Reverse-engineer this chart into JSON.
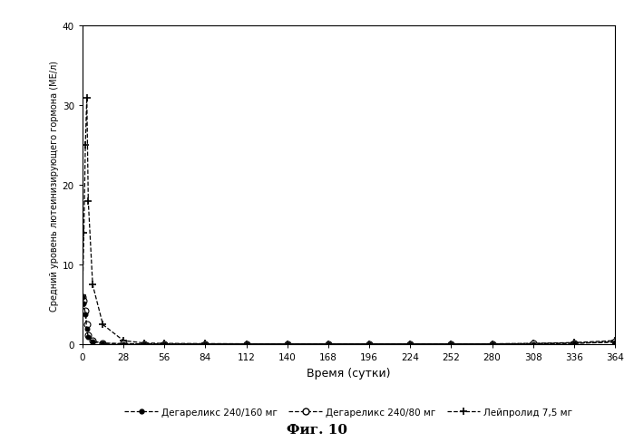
{
  "title": "",
  "xlabel": "Время (сутки)",
  "ylabel": "Средний уровень лютеинизирующего гормона (МЕ/л)",
  "caption": "Фиг. 10",
  "ylim": [
    0,
    40
  ],
  "xlim": [
    0,
    364
  ],
  "xticks": [
    0,
    28,
    56,
    84,
    112,
    140,
    168,
    196,
    224,
    252,
    280,
    308,
    336,
    364
  ],
  "yticks": [
    0,
    10,
    20,
    30,
    40
  ],
  "series1_label": "Дегареликс 240/160 мг",
  "series2_label": "Дегареликс 240/80 мг",
  "series3_label": "Лейпролид 7,5 мг",
  "series1_x": [
    0,
    1,
    2,
    3,
    4,
    7,
    14,
    28,
    42,
    56,
    84,
    112,
    140,
    168,
    196,
    224,
    252,
    280,
    308,
    336,
    364
  ],
  "series1_y": [
    6.0,
    5.2,
    3.8,
    2.0,
    0.9,
    0.35,
    0.15,
    0.1,
    0.08,
    0.08,
    0.07,
    0.07,
    0.07,
    0.07,
    0.07,
    0.07,
    0.07,
    0.07,
    0.1,
    0.15,
    0.3
  ],
  "series2_x": [
    0,
    1,
    2,
    3,
    4,
    7,
    14,
    28,
    42,
    56,
    84,
    112,
    140,
    168,
    196,
    224,
    252,
    280,
    308,
    336,
    364
  ],
  "series2_y": [
    6.0,
    5.5,
    4.2,
    2.5,
    1.2,
    0.45,
    0.18,
    0.12,
    0.09,
    0.09,
    0.08,
    0.08,
    0.08,
    0.08,
    0.08,
    0.08,
    0.08,
    0.08,
    0.12,
    0.18,
    0.35
  ],
  "series3_x": [
    0,
    1,
    2,
    3,
    4,
    7,
    14,
    28,
    42,
    56,
    84,
    112,
    140,
    168,
    196,
    224,
    252,
    280,
    308,
    336,
    364
  ],
  "series3_y": [
    6.2,
    14.0,
    25.0,
    31.0,
    18.0,
    7.5,
    2.5,
    0.5,
    0.2,
    0.15,
    0.12,
    0.1,
    0.1,
    0.1,
    0.1,
    0.1,
    0.1,
    0.1,
    0.15,
    0.25,
    0.5
  ],
  "bg_color": "#ffffff"
}
